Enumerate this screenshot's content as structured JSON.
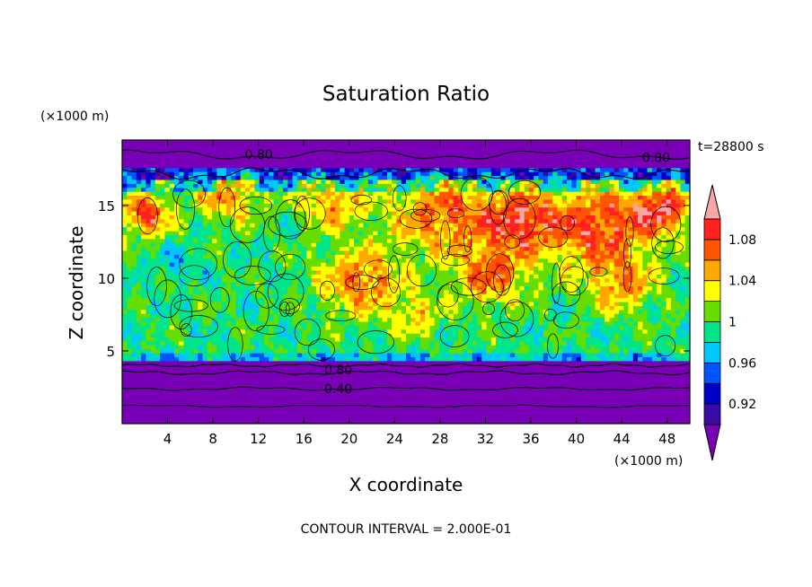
{
  "chart_data": {
    "type": "heatmap",
    "title": "Saturation Ratio",
    "xlabel": "X coordinate",
    "ylabel": "Z coordinate",
    "x_unit": "(×1000 m)",
    "y_unit": "(×1000 m)",
    "time_label": "t=28800 s",
    "footer": "CONTOUR INTERVAL = 2.000E-01",
    "xlim": [
      0,
      50
    ],
    "ylim": [
      0,
      19.5
    ],
    "x_ticks": [
      4,
      8,
      12,
      16,
      20,
      24,
      28,
      32,
      36,
      40,
      44,
      48
    ],
    "y_ticks": [
      5,
      10,
      15
    ],
    "colorbar": {
      "boundaries": [
        0.9,
        0.92,
        0.94,
        0.96,
        0.98,
        1.0,
        1.02,
        1.04,
        1.06,
        1.08,
        1.1
      ],
      "tick_labels": [
        "0.92",
        "0.96",
        "1",
        "1.04",
        "1.08"
      ],
      "tick_values": [
        0.92,
        0.96,
        1.0,
        1.04,
        1.08
      ],
      "under_color": "#7a00b8",
      "over_color": "#f7a6a6",
      "colors": [
        "#3a0aa6",
        "#0000c8",
        "#0055ff",
        "#00c8ff",
        "#00e48c",
        "#66dd00",
        "#ffff00",
        "#ffa800",
        "#ff5500",
        "#ff2020"
      ]
    },
    "contour_labels": [
      {
        "text": "0.80",
        "x": 10.8,
        "z": 18.5
      },
      {
        "text": "0.80",
        "x": 45.8,
        "z": 18.3
      },
      {
        "text": "0.80",
        "x": 17.8,
        "z": 3.7
      },
      {
        "text": "0.40",
        "x": 17.8,
        "z": 2.4
      }
    ]
  }
}
